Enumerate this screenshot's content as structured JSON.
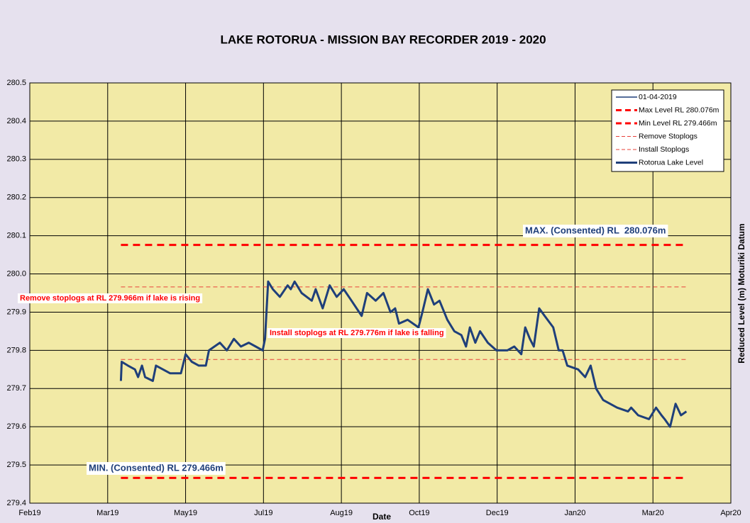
{
  "chart_data": {
    "type": "line",
    "title": "LAKE ROTORUA - MISSION BAY RECORDER 2019 - 2020",
    "x_label": "Date",
    "y_label": "Reduced Level (m) Moturiki Datum",
    "xlim": [
      0,
      9
    ],
    "xticks": [
      {
        "value": 0,
        "label": "Feb19"
      },
      {
        "value": 1,
        "label": "Mar19"
      },
      {
        "value": 2,
        "label": "May19"
      },
      {
        "value": 3,
        "label": "Jul19"
      },
      {
        "value": 4,
        "label": "Aug19"
      },
      {
        "value": 5,
        "label": "Oct19"
      },
      {
        "value": 6,
        "label": "Dec19"
      },
      {
        "value": 7,
        "label": "Jan20"
      },
      {
        "value": 8,
        "label": "Mar20"
      },
      {
        "value": 9,
        "label": "Apr20"
      }
    ],
    "ylim": [
      279.4,
      280.5
    ],
    "yticks": [
      279.4,
      279.5,
      279.6,
      279.7,
      279.8,
      279.9,
      {
        "value": 280,
        "label": "280.0"
      },
      280.1,
      280.2,
      280.3,
      280.4,
      280.5
    ],
    "grid": true,
    "legend": "top-right",
    "series": [
      {
        "name": "01-04-2019",
        "color": "#1f3f7a",
        "style": "thin-solid",
        "x": [],
        "values": []
      },
      {
        "name": "Max Level RL 280.076m",
        "color": "#ff0000",
        "style": "thick-dashed",
        "x": [
          1.17,
          8.43
        ],
        "values": [
          280.076,
          280.076
        ]
      },
      {
        "name": "Min Level RL 279.466m",
        "color": "#ff0000",
        "style": "thick-dashed",
        "x": [
          1.17,
          8.43
        ],
        "values": [
          279.466,
          279.466
        ]
      },
      {
        "name": "Remove Stoplogs",
        "color": "#e8403a",
        "style": "thin-dashed",
        "x": [
          1.17,
          8.43
        ],
        "values": [
          279.966,
          279.966
        ]
      },
      {
        "name": "Install Stoplogs",
        "color": "#e8403a",
        "style": "thin-dashed",
        "x": [
          1.17,
          8.43
        ],
        "values": [
          279.776,
          279.776
        ]
      },
      {
        "name": "Rotorua Lake Level",
        "color": "#1f3f7a",
        "style": "thick-solid",
        "x": [
          1.17,
          1.18,
          1.26,
          1.35,
          1.39,
          1.44,
          1.48,
          1.58,
          1.62,
          1.71,
          1.8,
          1.94,
          2.0,
          2.08,
          2.17,
          2.26,
          2.3,
          2.44,
          2.53,
          2.62,
          2.71,
          2.81,
          2.9,
          2.99,
          3.02,
          3.06,
          3.12,
          3.21,
          3.31,
          3.35,
          3.4,
          3.49,
          3.62,
          3.67,
          3.76,
          3.85,
          3.94,
          4.03,
          4.13,
          4.26,
          4.33,
          4.44,
          4.54,
          4.63,
          4.69,
          4.74,
          4.85,
          4.99,
          5.04,
          5.11,
          5.19,
          5.26,
          5.36,
          5.45,
          5.54,
          5.6,
          5.65,
          5.72,
          5.78,
          5.88,
          5.99,
          6.13,
          6.22,
          6.31,
          6.36,
          6.42,
          6.47,
          6.54,
          6.61,
          6.72,
          6.79,
          6.84,
          6.9,
          7.04,
          7.13,
          7.2,
          7.27,
          7.36,
          7.54,
          7.68,
          7.72,
          7.81,
          7.95,
          8.04,
          8.11,
          8.15,
          8.22,
          8.29,
          8.36,
          8.43
        ],
        "values": [
          279.72,
          279.77,
          279.76,
          279.75,
          279.73,
          279.76,
          279.73,
          279.72,
          279.76,
          279.75,
          279.74,
          279.74,
          279.79,
          279.77,
          279.76,
          279.76,
          279.8,
          279.82,
          279.8,
          279.83,
          279.81,
          279.82,
          279.81,
          279.8,
          279.83,
          279.98,
          279.96,
          279.94,
          279.97,
          279.96,
          279.98,
          279.95,
          279.93,
          279.96,
          279.91,
          279.97,
          279.94,
          279.96,
          279.93,
          279.89,
          279.95,
          279.93,
          279.95,
          279.9,
          279.91,
          279.87,
          279.88,
          279.86,
          279.9,
          279.96,
          279.92,
          279.93,
          279.88,
          279.85,
          279.84,
          279.81,
          279.86,
          279.82,
          279.85,
          279.82,
          279.8,
          279.8,
          279.81,
          279.79,
          279.86,
          279.83,
          279.81,
          279.91,
          279.89,
          279.86,
          279.8,
          279.8,
          279.76,
          279.75,
          279.73,
          279.76,
          279.7,
          279.67,
          279.65,
          279.64,
          279.65,
          279.63,
          279.62,
          279.65,
          279.63,
          279.62,
          279.6,
          279.66,
          279.63,
          279.64
        ]
      }
    ],
    "annotations": [
      {
        "text": "MAX. (Consented) RL  280.076m",
        "color": "#1f3f7a"
      },
      {
        "text": "MIN. (Consented) RL 279.466m",
        "color": "#1f3f7a"
      },
      {
        "text": "Remove stoplogs at RL 279.966m if lake is rising",
        "color": "#ff0000"
      },
      {
        "text": "Install stoplogs at RL 279.776m if lake is falling",
        "color": "#ff0000"
      }
    ]
  }
}
